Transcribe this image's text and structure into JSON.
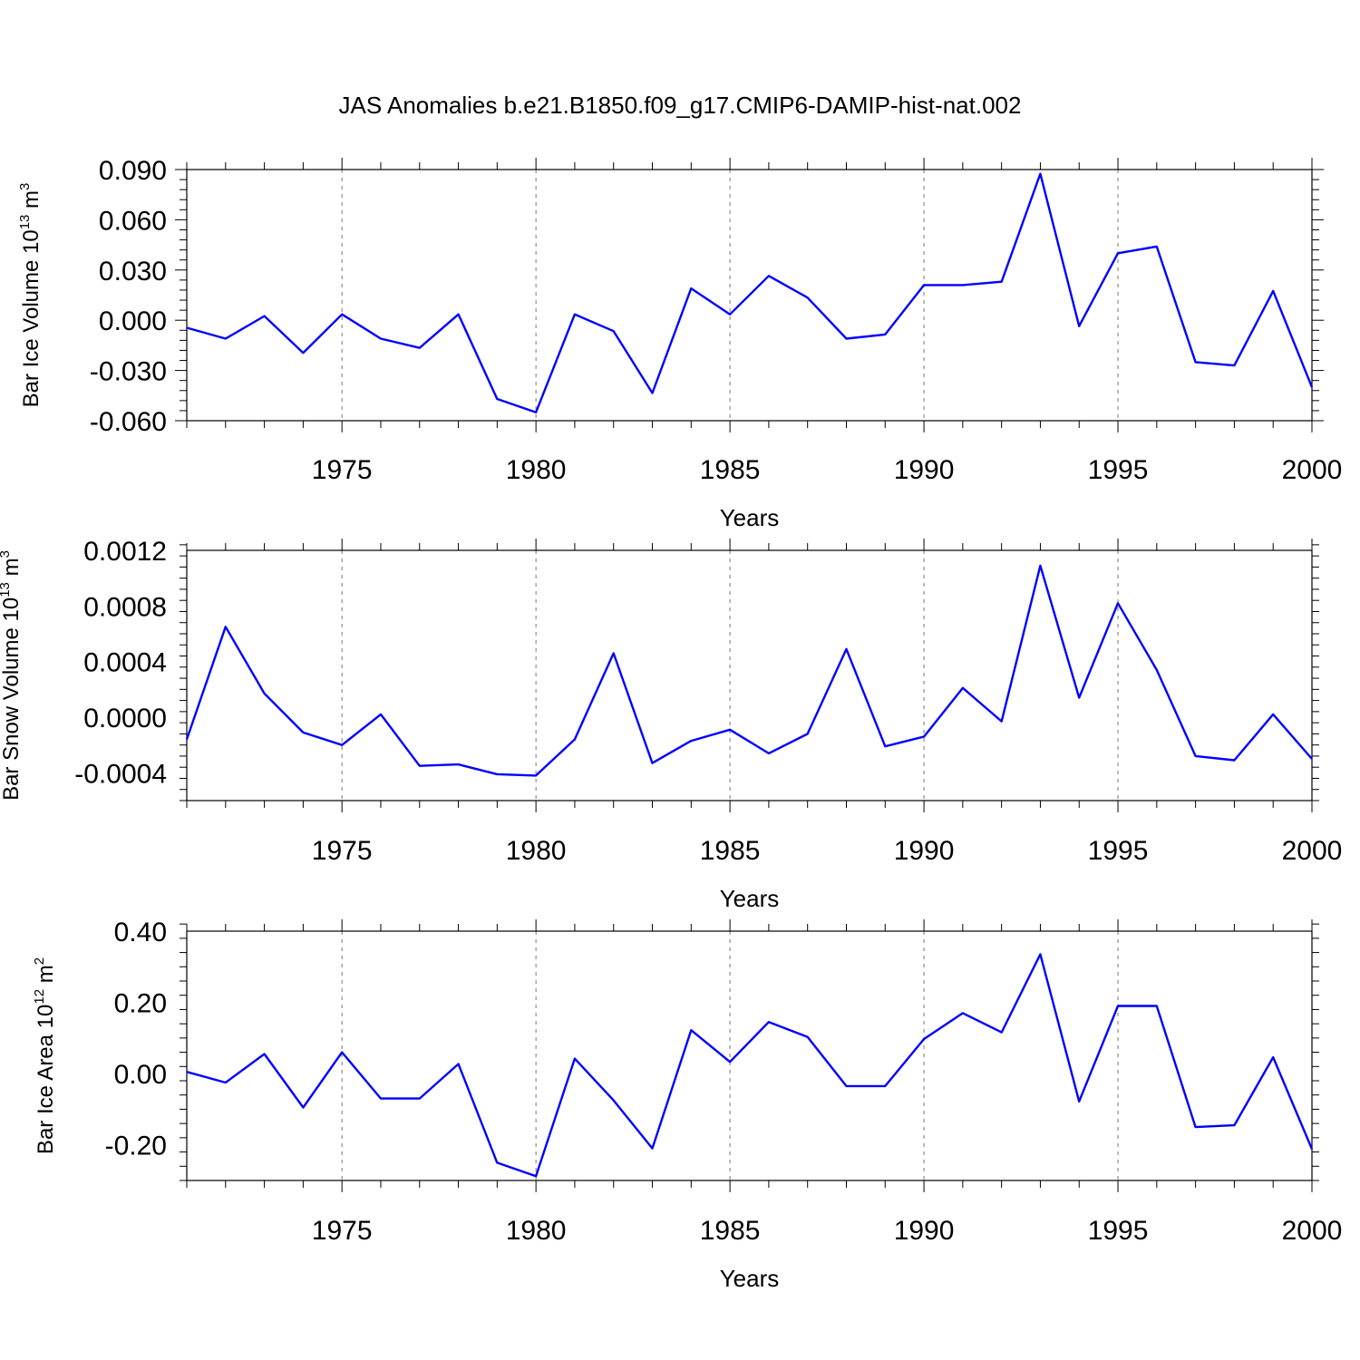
{
  "figure_title": "JAS Anomalies b.e21.B1850.f09_g17.CMIP6-DAMIP-hist-nat.002",
  "colors": {
    "line": "#0000ff",
    "grid": "#777777",
    "frame": "#000000"
  },
  "chart_data": [
    {
      "type": "line",
      "ylabel": {
        "text": "Bar Ice Volume 10",
        "exp": "13",
        "unit": " m",
        "unit_exp": "3"
      },
      "xlabel": "Years",
      "xlim": [
        1971,
        2000
      ],
      "ylim": [
        -0.06,
        0.09
      ],
      "x_ticks": [
        "1975",
        "1980",
        "1985",
        "1990",
        "1995",
        "2000"
      ],
      "y_ticks": [
        "0.090",
        "0.060",
        "0.030",
        "0.000",
        "-0.030",
        "-0.060"
      ],
      "y_tick_values": [
        0.09,
        0.06,
        0.03,
        0.0,
        -0.03,
        -0.06
      ],
      "grid_x": [
        1975,
        1980,
        1985,
        1990,
        1995
      ],
      "x": [
        1971,
        1972,
        1973,
        1974,
        1975,
        1976,
        1977,
        1978,
        1979,
        1980,
        1981,
        1982,
        1983,
        1984,
        1985,
        1986,
        1987,
        1988,
        1989,
        1990,
        1991,
        1992,
        1993,
        1994,
        1995,
        1996,
        1997,
        1998,
        1999,
        2000
      ],
      "values": [
        -0.0045,
        -0.011,
        0.0025,
        -0.0195,
        0.0035,
        -0.011,
        -0.0165,
        0.0035,
        -0.047,
        -0.055,
        0.0035,
        -0.0065,
        -0.0435,
        0.019,
        0.0035,
        0.0265,
        0.0135,
        -0.011,
        -0.0085,
        0.021,
        0.021,
        0.023,
        0.0875,
        -0.0035,
        0.04,
        0.044,
        -0.025,
        -0.027,
        0.0175,
        -0.04
      ]
    },
    {
      "type": "line",
      "ylabel": {
        "text": "Bar Snow Volume 10",
        "exp": "13",
        "unit": " m",
        "unit_exp": "3"
      },
      "xlabel": "Years",
      "xlim": [
        1971,
        2000
      ],
      "ylim": [
        -0.0006,
        0.0012
      ],
      "x_ticks": [
        "1975",
        "1980",
        "1985",
        "1990",
        "1995",
        "2000"
      ],
      "y_ticks": [
        "0.0012",
        "0.0008",
        "0.0004",
        "0.0000",
        "-0.0004"
      ],
      "y_tick_values": [
        0.0012,
        0.0008,
        0.0004,
        0.0,
        -0.0004
      ],
      "grid_x": [
        1975,
        1980,
        1985,
        1990,
        1995
      ],
      "x": [
        1971,
        1972,
        1973,
        1974,
        1975,
        1976,
        1977,
        1978,
        1979,
        1980,
        1981,
        1982,
        1983,
        1984,
        1985,
        1986,
        1987,
        1988,
        1989,
        1990,
        1991,
        1992,
        1993,
        1994,
        1995,
        1996,
        1997,
        1998,
        1999,
        2000
      ],
      "values": [
        -0.00016,
        0.00065,
        0.00017,
        -0.00011,
        -0.0002,
        2e-05,
        -0.00035,
        -0.00034,
        -0.00041,
        -0.00042,
        -0.00016,
        0.00046,
        -0.00033,
        -0.00017,
        -9e-05,
        -0.00026,
        -0.00012,
        0.00049,
        -0.00021,
        -0.00014,
        0.00021,
        -3e-05,
        0.00109,
        0.00014,
        0.00082,
        0.00034,
        -0.00028,
        -0.00031,
        2e-05,
        -0.0003
      ]
    },
    {
      "type": "line",
      "ylabel": {
        "text": "Bar Ice Area 10",
        "exp": "12",
        "unit": " m",
        "unit_exp": "2"
      },
      "xlabel": "Years",
      "xlim": [
        1971,
        2000
      ],
      "ylim": [
        -0.3,
        0.4
      ],
      "x_ticks": [
        "1975",
        "1980",
        "1985",
        "1990",
        "1995",
        "2000"
      ],
      "y_ticks": [
        "0.40",
        "0.20",
        "0.00",
        "-0.20"
      ],
      "y_tick_values": [
        0.4,
        0.2,
        0.0,
        -0.2
      ],
      "grid_x": [
        1975,
        1980,
        1985,
        1990,
        1995
      ],
      "x": [
        1971,
        1972,
        1973,
        1974,
        1975,
        1976,
        1977,
        1978,
        1979,
        1980,
        1981,
        1982,
        1983,
        1984,
        1985,
        1986,
        1987,
        1988,
        1989,
        1990,
        1991,
        1992,
        1993,
        1994,
        1995,
        1996,
        1997,
        1998,
        1999,
        2000
      ],
      "values": [
        0.005,
        -0.025,
        0.055,
        -0.095,
        0.06,
        -0.07,
        -0.07,
        0.027,
        -0.25,
        -0.288,
        0.042,
        -0.075,
        -0.21,
        0.122,
        0.033,
        0.145,
        0.103,
        -0.035,
        -0.035,
        0.097,
        0.17,
        0.116,
        0.335,
        -0.078,
        0.19,
        0.19,
        -0.15,
        -0.145,
        0.046,
        -0.212
      ]
    }
  ]
}
